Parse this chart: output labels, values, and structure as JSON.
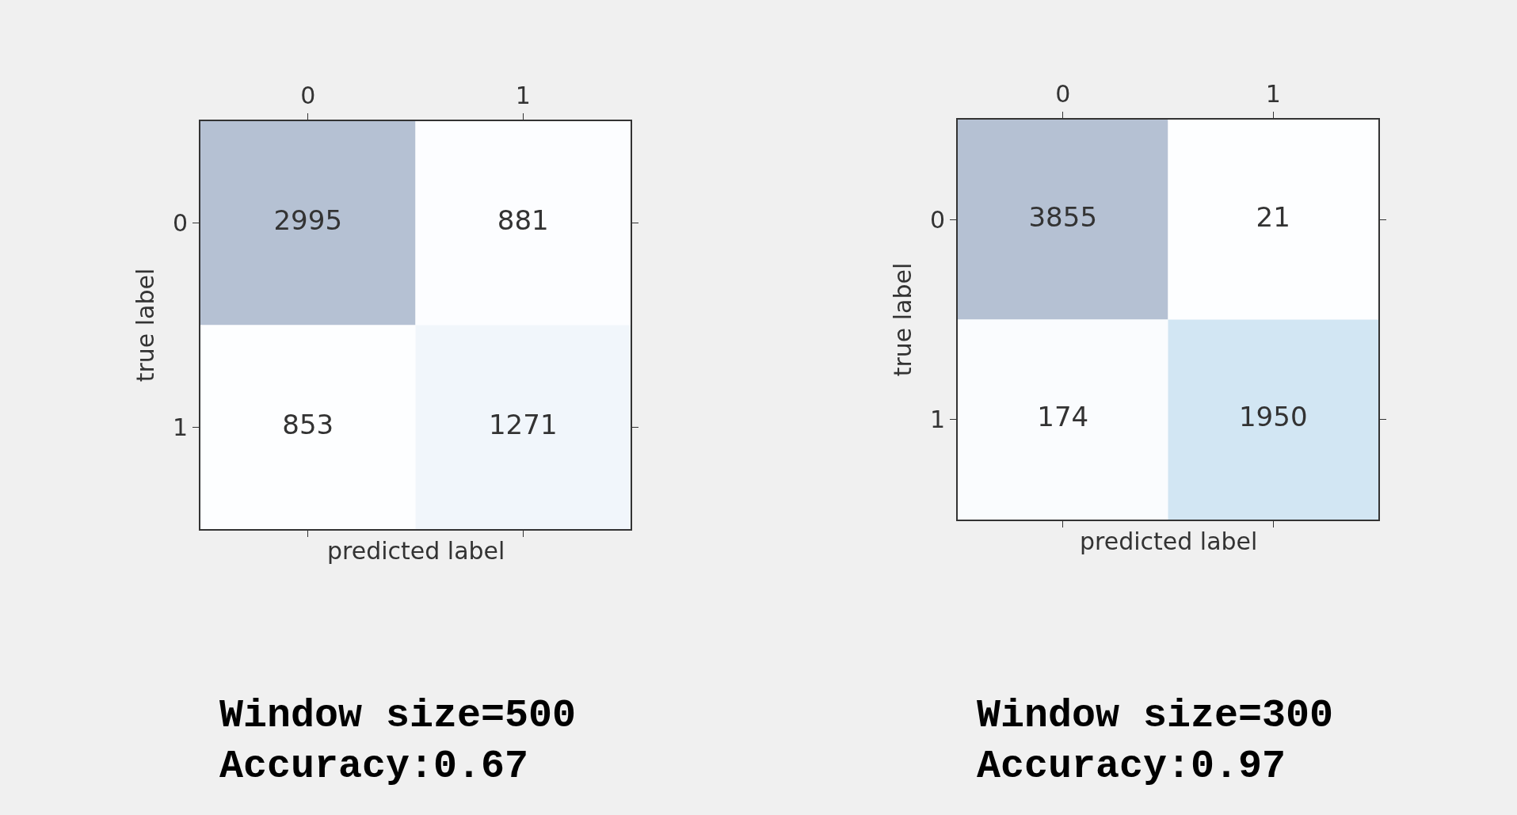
{
  "chart_data": [
    {
      "type": "heatmap",
      "title": "Window size=500",
      "subtitle": "Accuracy:0.67",
      "xlabel": "predicted label",
      "ylabel": "true label",
      "categories": [
        "0",
        "1"
      ],
      "y_categories": [
        "0",
        "1"
      ],
      "cells": [
        [
          2995,
          881
        ],
        [
          853,
          1271
        ]
      ],
      "data_labels": true
    },
    {
      "type": "heatmap",
      "title": "Window size=300",
      "subtitle": "Accuracy:0.97",
      "xlabel": "predicted label",
      "ylabel": "true label",
      "categories": [
        "0",
        "1"
      ],
      "y_categories": [
        "0",
        "1"
      ],
      "cells": [
        [
          3855,
          21
        ],
        [
          174,
          1950
        ]
      ],
      "data_labels": true
    }
  ]
}
